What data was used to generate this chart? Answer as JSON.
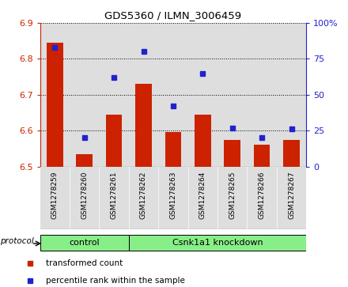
{
  "title": "GDS5360 / ILMN_3006459",
  "samples": [
    "GSM1278259",
    "GSM1278260",
    "GSM1278261",
    "GSM1278262",
    "GSM1278263",
    "GSM1278264",
    "GSM1278265",
    "GSM1278266",
    "GSM1278267"
  ],
  "bar_values": [
    6.845,
    6.535,
    6.645,
    6.73,
    6.595,
    6.645,
    6.575,
    6.56,
    6.575
  ],
  "percentile_values": [
    83,
    20,
    62,
    80,
    42,
    65,
    27,
    20,
    26
  ],
  "ylim_left": [
    6.5,
    6.9
  ],
  "ylim_right": [
    0,
    100
  ],
  "yticks_left": [
    6.5,
    6.6,
    6.7,
    6.8,
    6.9
  ],
  "yticks_right": [
    0,
    25,
    50,
    75,
    100
  ],
  "bar_color": "#CC2200",
  "dot_color": "#2222CC",
  "col_bg": "#DEDEDE",
  "control_samples": 3,
  "group_labels": [
    "control",
    "Csnk1a1 knockdown"
  ],
  "group_color": "#88EE88",
  "protocol_label": "protocol",
  "legend_bar_label": "transformed count",
  "legend_dot_label": "percentile rank within the sample",
  "bar_width": 0.55,
  "fig_width": 4.4,
  "fig_height": 3.63
}
